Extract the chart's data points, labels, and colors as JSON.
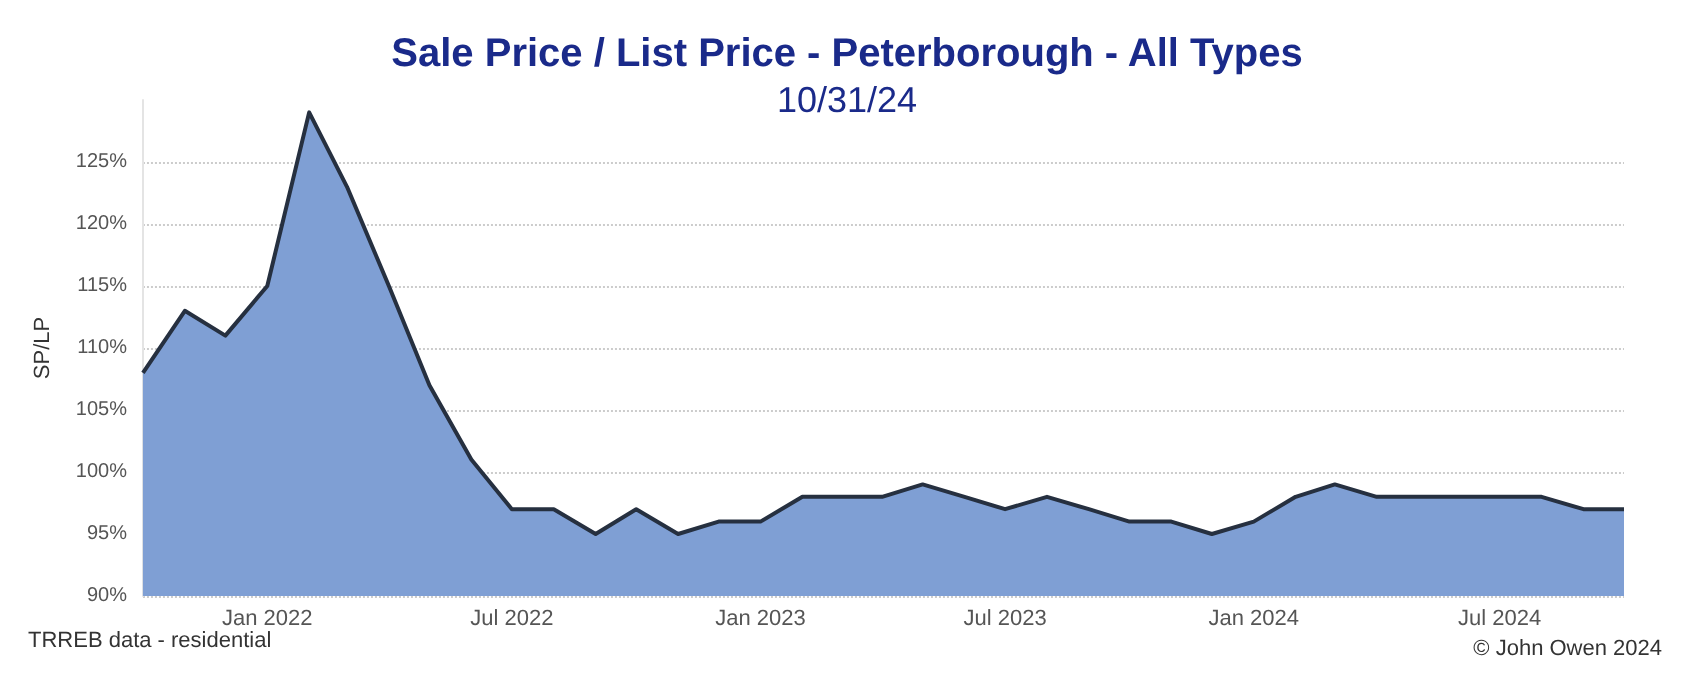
{
  "chart_data": {
    "type": "area",
    "title": "Sale Price / List Price - Peterborough - All Types",
    "subtitle": "10/31/24",
    "ylabel": "SP/LP",
    "annotations": [
      "TRREB data - residential",
      "© John Owen 2024"
    ],
    "x": [
      "2021-10",
      "2021-11",
      "2021-12",
      "2022-01",
      "2022-02",
      "2022-03",
      "2022-04",
      "2022-05",
      "2022-06",
      "2022-07",
      "2022-08",
      "2022-09",
      "2022-10",
      "2022-11",
      "2022-12",
      "2023-01",
      "2023-02",
      "2023-03",
      "2023-04",
      "2023-05",
      "2023-06",
      "2023-07",
      "2023-08",
      "2023-09",
      "2023-10",
      "2023-11",
      "2023-12",
      "2024-01",
      "2024-02",
      "2024-03",
      "2024-04",
      "2024-05",
      "2024-06",
      "2024-07",
      "2024-08",
      "2024-09",
      "2024-10"
    ],
    "series": [
      {
        "color": "#7f9fd4",
        "values": [
          108,
          113,
          111,
          115,
          129,
          123,
          115,
          107,
          101,
          97,
          97,
          95,
          97,
          95,
          96,
          96,
          98,
          98,
          98,
          99,
          98,
          97,
          98,
          97,
          96,
          96,
          95,
          96,
          98,
          99,
          98,
          98,
          98,
          98,
          98,
          97,
          97
        ]
      }
    ],
    "xlim": [
      "2021-10",
      "2024-10"
    ],
    "xticks": [
      {
        "value": "2022-01",
        "label": "Jan 2022"
      },
      {
        "value": "2022-07",
        "label": "Jul 2022"
      },
      {
        "value": "2023-01",
        "label": "Jan 2023"
      },
      {
        "value": "2023-07",
        "label": "Jul 2023"
      },
      {
        "value": "2024-01",
        "label": "Jan 2024"
      },
      {
        "value": "2024-07",
        "label": "Jul 2024"
      }
    ],
    "ylim": [
      90,
      130
    ],
    "yticks": [
      {
        "value": 90,
        "label": "90%"
      },
      {
        "value": 95,
        "label": "95%"
      },
      {
        "value": 100,
        "label": "100%"
      },
      {
        "value": 105,
        "label": "105%"
      },
      {
        "value": 110,
        "label": "110%"
      },
      {
        "value": 115,
        "label": "115%"
      },
      {
        "value": 120,
        "label": "120%"
      },
      {
        "value": 125,
        "label": "125%"
      }
    ],
    "grid": "y",
    "marker": "none",
    "line_style": "solid"
  }
}
